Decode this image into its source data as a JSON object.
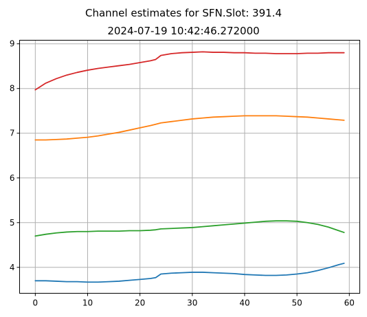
{
  "chart_data": {
    "type": "line",
    "title": "Channel estimates for SFN.Slot: 391.4",
    "subtitle": "2024-07-19 10:42:46.272000",
    "xlim": [
      -3,
      62
    ],
    "ylim": [
      3.42,
      9.08
    ],
    "x_ticks": [
      0,
      10,
      20,
      30,
      40,
      50,
      60
    ],
    "x_tick_labels": [
      "0",
      "10",
      "20",
      "30",
      "40",
      "50",
      "60"
    ],
    "y_ticks": [
      4,
      5,
      6,
      7,
      8,
      9
    ],
    "y_tick_labels": [
      "4",
      "5",
      "6",
      "7",
      "8",
      "9"
    ],
    "grid": true,
    "series": [
      {
        "color": "#1f77b4",
        "x": [
          0,
          2,
          4,
          6,
          8,
          10,
          12,
          14,
          16,
          18,
          20,
          22,
          23,
          24,
          26,
          28,
          30,
          32,
          34,
          36,
          38,
          40,
          42,
          44,
          46,
          48,
          50,
          52,
          54,
          56,
          58,
          59
        ],
        "y": [
          3.7,
          3.7,
          3.69,
          3.68,
          3.68,
          3.67,
          3.67,
          3.68,
          3.69,
          3.71,
          3.73,
          3.75,
          3.77,
          3.85,
          3.87,
          3.88,
          3.89,
          3.89,
          3.88,
          3.87,
          3.86,
          3.84,
          3.83,
          3.82,
          3.82,
          3.83,
          3.85,
          3.88,
          3.93,
          3.99,
          4.06,
          4.09
        ]
      },
      {
        "color": "#ff7f0e",
        "x": [
          0,
          2,
          4,
          6,
          8,
          10,
          12,
          14,
          16,
          18,
          20,
          22,
          23,
          24,
          26,
          28,
          30,
          32,
          34,
          36,
          38,
          40,
          42,
          44,
          46,
          48,
          50,
          52,
          54,
          56,
          58,
          59
        ],
        "y": [
          6.85,
          6.85,
          6.86,
          6.87,
          6.89,
          6.91,
          6.94,
          6.98,
          7.02,
          7.07,
          7.12,
          7.17,
          7.2,
          7.23,
          7.26,
          7.29,
          7.32,
          7.34,
          7.36,
          7.37,
          7.38,
          7.39,
          7.39,
          7.39,
          7.39,
          7.38,
          7.37,
          7.36,
          7.34,
          7.32,
          7.3,
          7.29
        ]
      },
      {
        "color": "#2ca02c",
        "x": [
          0,
          2,
          4,
          6,
          8,
          10,
          12,
          14,
          16,
          18,
          20,
          22,
          23,
          24,
          26,
          28,
          30,
          32,
          34,
          36,
          38,
          40,
          42,
          44,
          46,
          48,
          50,
          52,
          54,
          56,
          58,
          59
        ],
        "y": [
          4.7,
          4.74,
          4.77,
          4.79,
          4.8,
          4.8,
          4.81,
          4.81,
          4.81,
          4.82,
          4.82,
          4.83,
          4.84,
          4.86,
          4.87,
          4.88,
          4.89,
          4.91,
          4.93,
          4.95,
          4.97,
          4.99,
          5.01,
          5.03,
          5.04,
          5.04,
          5.03,
          5.0,
          4.96,
          4.9,
          4.82,
          4.78
        ]
      },
      {
        "color": "#d62728",
        "x": [
          0,
          2,
          4,
          6,
          8,
          10,
          12,
          14,
          16,
          18,
          20,
          22,
          23,
          24,
          26,
          28,
          30,
          32,
          34,
          36,
          38,
          40,
          42,
          44,
          46,
          48,
          50,
          52,
          54,
          56,
          58,
          59
        ],
        "y": [
          7.97,
          8.12,
          8.22,
          8.3,
          8.36,
          8.41,
          8.45,
          8.48,
          8.51,
          8.54,
          8.58,
          8.62,
          8.65,
          8.74,
          8.78,
          8.8,
          8.81,
          8.82,
          8.81,
          8.81,
          8.8,
          8.8,
          8.79,
          8.79,
          8.78,
          8.78,
          8.78,
          8.79,
          8.79,
          8.8,
          8.8,
          8.8
        ]
      }
    ]
  }
}
